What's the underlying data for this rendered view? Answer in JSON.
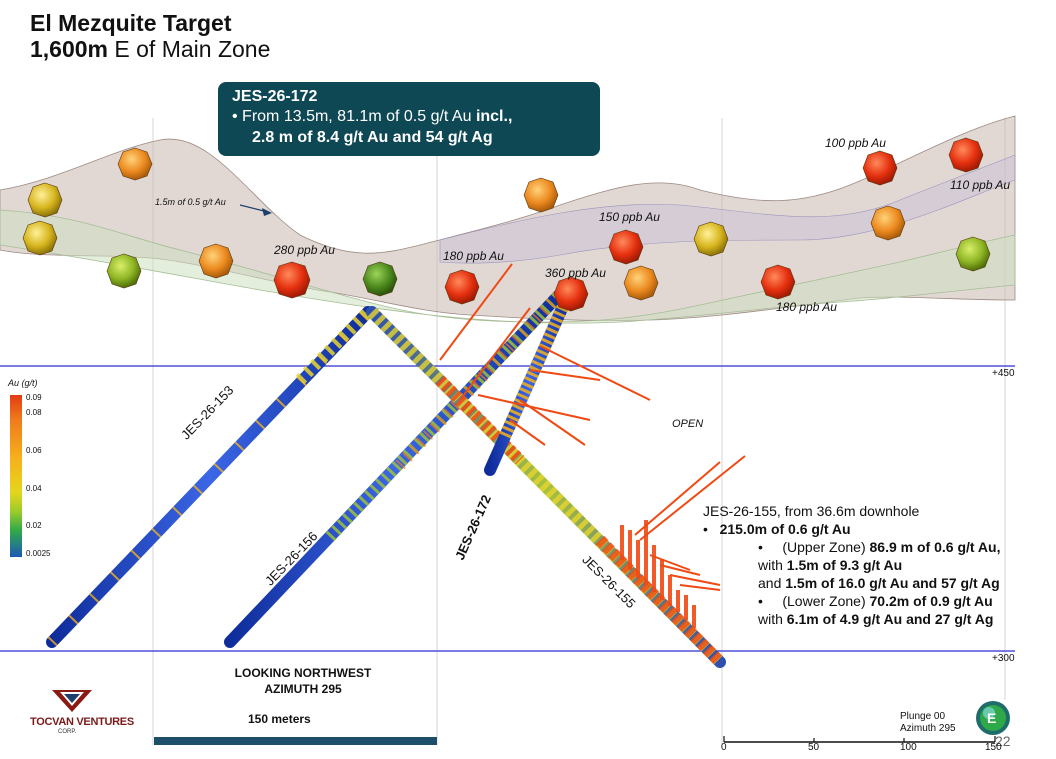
{
  "title": {
    "line1": "El Mezquite Target",
    "line2_bold": "1,600m",
    "line2_rest": " E of Main Zone"
  },
  "callout": {
    "hole": "JES-26-172",
    "line1_start": "•  From 13.5m, 81.1m of 0.5 g/t Au ",
    "line1_bold": "incl.,",
    "line2": "2.8 m of 8.4 g/t Au and 54 g/t Ag"
  },
  "surface_labels": {
    "a": "1.5m of 0.5 g/t Au",
    "b": "280 ppb Au",
    "c": "180 ppb Au",
    "d": "360 ppb Au",
    "e": "150 ppb Au",
    "f": "100 ppb Au",
    "g": "110 ppb Au",
    "h": "180 ppb Au"
  },
  "elevations": {
    "upper": "+450",
    "lower": "+300"
  },
  "holes": {
    "h153": "JES-26-153",
    "h156": "JES-26-156",
    "h172": "JES-26-172",
    "h155": "JES-26-155"
  },
  "open_label": "OPEN",
  "legend": {
    "title": "Au (g/t)",
    "ticks": [
      "0.09",
      "0.08",
      "0.06",
      "0.04",
      "0.02",
      "0.0025"
    ]
  },
  "notes": {
    "header": "JES-26-155, from 36.6m downhole",
    "b1_bold": "215.0m of 0.6 g/t Au",
    "upper_pre": "(Upper Zone) ",
    "upper_bold": "86.9 m of 0.6 g/t Au,",
    "with1_pre": "with ",
    "with1_bold": "1.5m of 9.3 g/t Au",
    "and1_pre": "and ",
    "and1_bold": "1.5m of 16.0 g/t Au and 57 g/t Ag",
    "lower_pre": "(Lower Zone) ",
    "lower_bold": "70.2m of 0.9 g/t Au",
    "with2_pre": "with ",
    "with2_bold": "6.1m of 4.9 g/t Au and 27 g/t Ag"
  },
  "looking": {
    "line1": "LOOKING NORTHWEST",
    "line2": "AZIMUTH 295"
  },
  "scale_label": "150 meters",
  "logo": {
    "name": "TOCVAN VENTURES",
    "sub": "CORP."
  },
  "plunge": {
    "line1": "Plunge 00",
    "line2": "Azimuth 295"
  },
  "compass_letter": "E",
  "scale2": [
    "0",
    "50",
    "100",
    "150"
  ],
  "page_number": "22",
  "colors": {
    "callout_bg": "#0f4855",
    "elevation_line": "#2a2fd0",
    "scale_bar": "#1d4f6a",
    "high_grade": "#f04a14",
    "low_grade": "#1e3fc8"
  }
}
